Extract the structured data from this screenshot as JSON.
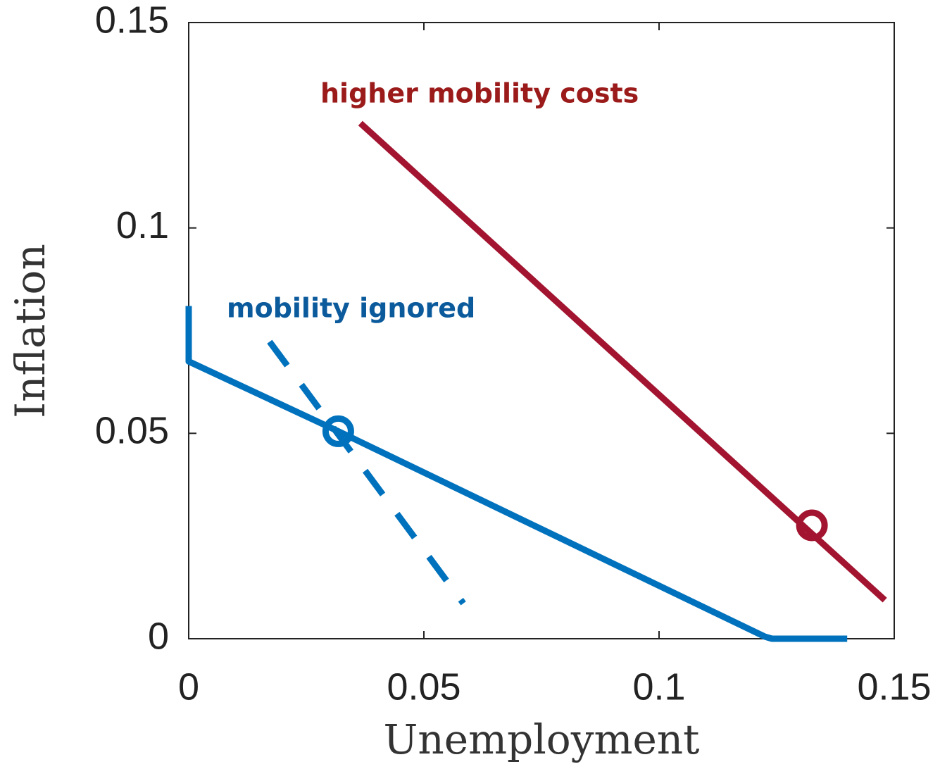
{
  "chart_data": {
    "type": "line",
    "xlabel": "Unemployment",
    "ylabel": "Inflation",
    "xlim": [
      0,
      0.15
    ],
    "ylim": [
      0,
      0.15
    ],
    "xticks": [
      0,
      0.05,
      0.1,
      0.15
    ],
    "yticks": [
      0,
      0.05,
      0.1,
      0.15
    ],
    "series": [
      {
        "color": "#0072bd",
        "style": "solid",
        "x": [
          0,
          0,
          0.0318,
          0.1225,
          0.124,
          0.14
        ],
        "values": [
          0.081,
          0.0675,
          0.0505,
          0.0005,
          0,
          0
        ]
      },
      {
        "color": "#0072bd",
        "style": "dashed",
        "x": [
          0.0172,
          0.0584
        ],
        "values": [
          0.0723,
          0.0086
        ]
      },
      {
        "color": "#a2142f",
        "style": "solid",
        "x": [
          0.0365,
          0.148
        ],
        "values": [
          0.1255,
          0.0094
        ]
      },
      {
        "color": "#0072bd",
        "style": "marker",
        "x": [
          0.0318
        ],
        "values": [
          0.0505
        ]
      },
      {
        "color": "#a2142f",
        "style": "marker",
        "x": [
          0.1325
        ],
        "values": [
          0.0276
        ]
      }
    ],
    "annotations": [
      {
        "text": "higher mobility costs",
        "color": "#9b1b1b"
      },
      {
        "text": "mobility ignored",
        "color": "#0a5a9c"
      }
    ]
  }
}
